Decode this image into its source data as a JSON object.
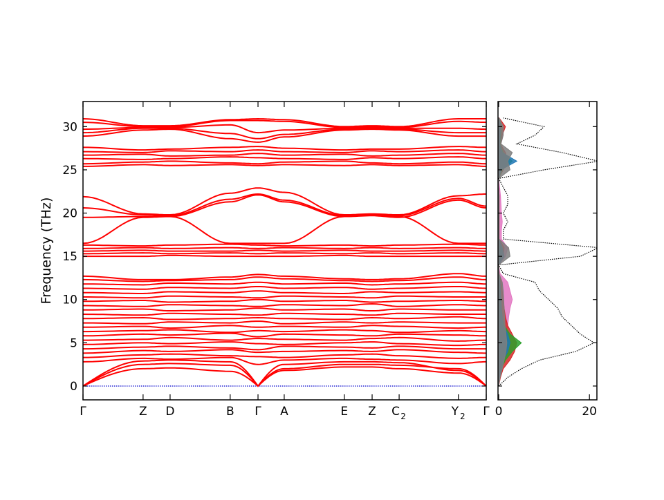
{
  "chart_data": [
    {
      "type": "line",
      "title": "",
      "xlabel": "",
      "ylabel": "Frequency (THz)",
      "ylim": [
        -1.6,
        32.9
      ],
      "yticks": [
        0,
        5,
        10,
        15,
        20,
        25,
        30
      ],
      "grid": false,
      "band_color": "#ff0000",
      "zero_line_color": "#0000cc",
      "kpoints": [
        {
          "label": "Γ",
          "sub": "",
          "pos": 0.0
        },
        {
          "label": "Z",
          "sub": "",
          "pos": 0.149
        },
        {
          "label": "D",
          "sub": "",
          "pos": 0.216
        },
        {
          "label": "B",
          "sub": "",
          "pos": 0.365
        },
        {
          "label": "Γ",
          "sub": "",
          "pos": 0.434
        },
        {
          "label": "A",
          "sub": "",
          "pos": 0.499
        },
        {
          "label": "E",
          "sub": "",
          "pos": 0.648
        },
        {
          "label": "Z",
          "sub": "",
          "pos": 0.717
        },
        {
          "label": "C",
          "sub": "2",
          "pos": 0.784
        },
        {
          "label": "Y",
          "sub": "2",
          "pos": 0.931
        },
        {
          "label": "Γ",
          "sub": "",
          "pos": 1.0
        }
      ],
      "bands": [
        [
          0,
          2.5,
          2.6,
          2.4,
          0,
          2.0,
          2.5,
          2.5,
          2.4,
          2.0,
          0
        ],
        [
          0,
          2.9,
          3.0,
          2.8,
          0,
          2.5,
          2.8,
          2.8,
          2.7,
          1.8,
          0
        ],
        [
          0,
          2.0,
          2.1,
          1.7,
          0,
          1.8,
          2.2,
          2.2,
          2.0,
          1.5,
          0
        ],
        [
          2.8,
          3.2,
          3.1,
          3.3,
          2.5,
          3.0,
          3.2,
          3.1,
          3.0,
          2.6,
          2.8
        ],
        [
          3.3,
          3.6,
          3.7,
          3.5,
          3.4,
          3.3,
          3.6,
          3.7,
          3.5,
          3.2,
          3.3
        ],
        [
          3.8,
          4.1,
          4.0,
          4.2,
          3.9,
          4.0,
          4.1,
          4.0,
          4.2,
          3.9,
          3.8
        ],
        [
          4.3,
          4.5,
          4.6,
          4.4,
          4.2,
          4.6,
          4.5,
          4.4,
          4.6,
          4.3,
          4.3
        ],
        [
          4.8,
          5.0,
          4.9,
          5.1,
          4.9,
          4.8,
          5.0,
          5.1,
          4.9,
          4.7,
          4.8
        ],
        [
          5.3,
          5.4,
          5.6,
          5.3,
          5.5,
          5.4,
          5.3,
          5.5,
          5.6,
          5.2,
          5.3
        ],
        [
          5.8,
          6.0,
          5.9,
          6.1,
          5.7,
          6.0,
          5.9,
          5.8,
          6.0,
          5.9,
          5.8
        ],
        [
          6.3,
          6.4,
          6.5,
          6.2,
          6.4,
          6.3,
          6.5,
          6.4,
          6.2,
          6.4,
          6.3
        ],
        [
          6.8,
          6.9,
          6.7,
          7.0,
          6.8,
          6.9,
          6.8,
          7.0,
          6.9,
          6.7,
          6.8
        ],
        [
          7.3,
          7.2,
          7.4,
          7.3,
          7.5,
          7.2,
          7.4,
          7.3,
          7.4,
          7.3,
          7.3
        ],
        [
          7.8,
          7.9,
          7.7,
          7.8,
          7.9,
          7.8,
          7.7,
          7.9,
          7.8,
          8.0,
          7.8
        ],
        [
          8.3,
          8.2,
          8.4,
          8.3,
          8.2,
          8.4,
          8.3,
          8.2,
          8.4,
          8.3,
          8.3
        ],
        [
          8.8,
          8.9,
          8.7,
          8.8,
          9.0,
          8.8,
          8.9,
          8.7,
          8.9,
          8.8,
          8.8
        ],
        [
          9.3,
          9.2,
          9.4,
          9.3,
          9.2,
          9.4,
          9.3,
          9.5,
          9.2,
          9.4,
          9.3
        ],
        [
          9.8,
          9.9,
          9.7,
          9.8,
          10.0,
          9.8,
          9.9,
          9.7,
          9.8,
          9.9,
          9.8
        ],
        [
          10.3,
          10.2,
          10.4,
          10.3,
          10.2,
          10.4,
          10.3,
          10.2,
          10.4,
          10.3,
          10.3
        ],
        [
          10.8,
          10.7,
          10.9,
          10.8,
          11.0,
          10.8,
          10.7,
          10.9,
          10.8,
          10.9,
          10.8
        ],
        [
          11.3,
          11.2,
          11.4,
          11.3,
          11.5,
          11.3,
          11.4,
          11.2,
          11.3,
          11.5,
          11.3
        ],
        [
          11.8,
          11.7,
          11.9,
          11.8,
          12.0,
          11.8,
          11.9,
          11.7,
          11.8,
          12.0,
          11.8
        ],
        [
          12.3,
          12.1,
          12.2,
          12.3,
          12.6,
          12.4,
          12.2,
          12.1,
          12.2,
          12.6,
          12.3
        ],
        [
          12.7,
          12.3,
          12.3,
          12.6,
          12.9,
          12.7,
          12.4,
          12.3,
          12.4,
          13.0,
          12.7
        ],
        [
          15.0,
          15.0,
          15.1,
          15.0,
          15.0,
          15.0,
          15.1,
          15.0,
          15.0,
          15.0,
          15.0
        ],
        [
          15.3,
          15.4,
          15.3,
          15.4,
          15.3,
          15.4,
          15.3,
          15.4,
          15.3,
          15.4,
          15.3
        ],
        [
          15.6,
          15.7,
          15.6,
          15.6,
          15.7,
          15.6,
          15.7,
          15.6,
          15.6,
          15.7,
          15.6
        ],
        [
          15.9,
          16.0,
          15.9,
          16.0,
          15.9,
          16.0,
          15.9,
          16.0,
          15.9,
          16.0,
          15.9
        ],
        [
          16.3,
          16.2,
          16.3,
          16.4,
          16.3,
          16.2,
          16.3,
          16.2,
          16.3,
          16.4,
          16.3
        ],
        [
          16.5,
          19.5,
          19.6,
          16.5,
          16.5,
          16.5,
          19.6,
          19.8,
          19.6,
          16.5,
          16.5
        ],
        [
          19.5,
          19.6,
          19.6,
          21.3,
          22.1,
          21.3,
          19.6,
          19.7,
          19.5,
          21.5,
          20.6
        ],
        [
          20.6,
          19.8,
          19.7,
          21.6,
          22.2,
          21.5,
          19.7,
          19.8,
          19.7,
          21.7,
          20.8
        ],
        [
          21.9,
          19.9,
          19.8,
          22.3,
          22.9,
          22.4,
          19.8,
          19.9,
          19.8,
          22.0,
          22.2
        ],
        [
          25.4,
          25.6,
          25.5,
          25.6,
          25.5,
          25.6,
          25.5,
          25.6,
          25.5,
          25.6,
          25.4
        ],
        [
          25.7,
          25.9,
          26.0,
          25.8,
          25.7,
          25.9,
          26.0,
          25.8,
          25.7,
          25.9,
          25.7
        ],
        [
          26.3,
          26.2,
          26.3,
          26.5,
          26.4,
          26.3,
          26.2,
          26.4,
          26.3,
          26.5,
          26.3
        ],
        [
          26.7,
          26.8,
          26.6,
          26.7,
          26.9,
          26.7,
          26.8,
          26.6,
          26.7,
          26.9,
          26.7
        ],
        [
          27.1,
          27.0,
          27.2,
          27.1,
          27.3,
          27.1,
          27.0,
          27.2,
          27.1,
          27.3,
          27.1
        ],
        [
          27.6,
          27.3,
          27.4,
          27.6,
          27.7,
          27.5,
          27.3,
          27.4,
          27.4,
          27.7,
          27.6
        ],
        [
          28.9,
          29.6,
          29.7,
          28.6,
          28.2,
          28.8,
          29.6,
          29.7,
          29.6,
          28.9,
          28.9
        ],
        [
          29.3,
          29.8,
          29.8,
          29.2,
          28.6,
          29.1,
          29.7,
          29.8,
          29.7,
          29.3,
          29.3
        ],
        [
          29.7,
          29.9,
          29.9,
          30.2,
          29.3,
          29.6,
          29.8,
          29.9,
          29.8,
          29.8,
          29.7
        ],
        [
          30.5,
          30.0,
          30.0,
          30.7,
          30.7,
          30.6,
          29.9,
          30.0,
          29.9,
          30.6,
          30.5
        ],
        [
          30.9,
          30.1,
          30.1,
          30.8,
          30.9,
          30.8,
          30.0,
          30.1,
          30.0,
          30.9,
          30.9
        ]
      ]
    },
    {
      "type": "area",
      "title": "",
      "xlabel": "",
      "ylabel": "",
      "xlim": [
        0,
        21.8
      ],
      "xticks": [
        0,
        20
      ],
      "ylim": [
        -1.6,
        32.9
      ],
      "grid": false,
      "frequency": [
        0,
        1,
        2,
        3,
        4,
        5,
        6,
        7,
        8,
        9,
        10,
        11,
        12,
        13,
        14,
        15,
        16,
        17,
        18,
        19,
        20,
        21,
        22,
        23,
        24,
        25,
        26,
        27,
        28,
        29,
        30,
        31
      ],
      "total": {
        "color": "#000000",
        "values": [
          0,
          2,
          5,
          9,
          17,
          21,
          18,
          16,
          14,
          13,
          11,
          9,
          8,
          1,
          0,
          18,
          22,
          1,
          1,
          2,
          1,
          2,
          2,
          1,
          0,
          10,
          22,
          14,
          4,
          8,
          10,
          1
        ]
      },
      "partials": [
        {
          "color": "#e377c2",
          "values": [
            0,
            0.3,
            0.8,
            1.2,
            1.5,
            1.8,
            1.6,
            2.0,
            2.2,
            2.5,
            3.0,
            2.5,
            2.0,
            0.3,
            0,
            1.5,
            2.0,
            0.6,
            0.6,
            0.8,
            0.6,
            0.5,
            0.4,
            0.2,
            0,
            0.5,
            0.8,
            0.6,
            0.3,
            0.3,
            0.4,
            0.1
          ]
        },
        {
          "color": "#d62728",
          "values": [
            0,
            0.4,
            1.0,
            2.5,
            3.5,
            4.0,
            3.0,
            2.0,
            1.5,
            1.2,
            1.0,
            0.8,
            0.6,
            0.1,
            0,
            1.0,
            1.2,
            0.1,
            0.1,
            0.1,
            0.1,
            0.1,
            0.1,
            0,
            0,
            1.0,
            2.0,
            1.5,
            0.4,
            0.8,
            1.5,
            0.1
          ]
        },
        {
          "color": "#2ca02c",
          "values": [
            0,
            0.2,
            0.6,
            1.5,
            3.0,
            5.0,
            2.5,
            1.2,
            0.8,
            0.6,
            0.5,
            0.4,
            0.3,
            0.1,
            0,
            0.6,
            0.8,
            0,
            0,
            0,
            0,
            0,
            0,
            0,
            0,
            0.8,
            3.0,
            1.0,
            0.3,
            0.5,
            0.6,
            0
          ]
        },
        {
          "color": "#1f77b4",
          "values": [
            0,
            0.2,
            0.5,
            1.0,
            2.0,
            2.5,
            2.0,
            1.0,
            0.8,
            0.6,
            0.5,
            0.4,
            0.3,
            0,
            0,
            1.2,
            0.8,
            0,
            0,
            0,
            0,
            0,
            0,
            0,
            0,
            0.5,
            4.0,
            0.8,
            0.2,
            0.3,
            0.4,
            0
          ]
        },
        {
          "color": "#7f7f7f",
          "values": [
            0,
            0.3,
            0.8,
            1.2,
            1.6,
            1.8,
            1.6,
            1.4,
            1.3,
            1.2,
            1.1,
            1.0,
            0.8,
            0.1,
            0,
            2.5,
            2.2,
            0.1,
            0.1,
            0.1,
            0.1,
            0.1,
            0.1,
            0,
            0,
            2.5,
            2.0,
            3.0,
            0.5,
            1.0,
            1.0,
            0.1
          ]
        }
      ]
    }
  ]
}
